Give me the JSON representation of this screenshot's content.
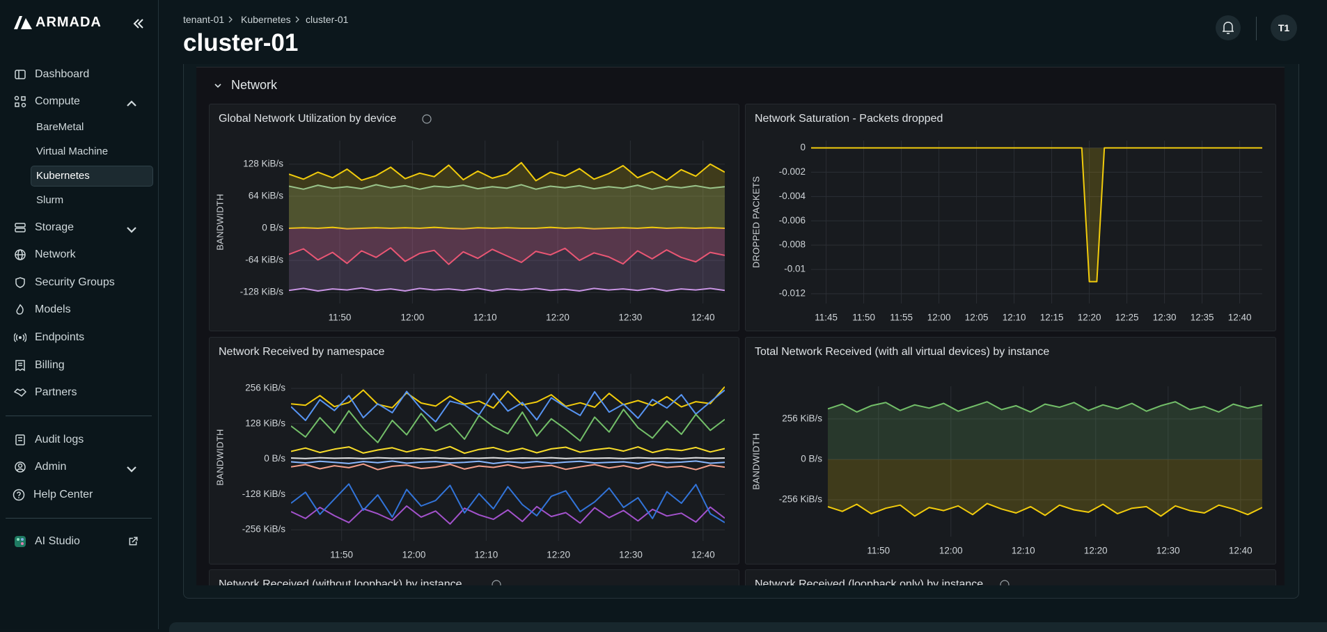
{
  "sidebar": {
    "brand": "ARMADA",
    "items": [
      "Dashboard",
      "Compute",
      "Storage",
      "Network",
      "Security Groups",
      "Models",
      "Endpoints",
      "Billing",
      "Partners"
    ],
    "compute_children": [
      "BareMetal",
      "Virtual Machine",
      "Kubernetes",
      "Slurm"
    ],
    "items2": [
      "Audit logs",
      "Admin",
      "Help Center"
    ],
    "footer": "AI Studio"
  },
  "header": {
    "breadcrumbs": [
      "tenant-01",
      "Kubernetes",
      "cluster-01"
    ],
    "title": "cluster-01",
    "avatar": "T1"
  },
  "section": {
    "title": "Network",
    "more_panels": [
      "Network Received (without loopback) by instance",
      "Network Received (loopback only) by instance"
    ]
  },
  "chart_data": [
    {
      "type": "line",
      "title": "Global Network Utilization by device",
      "ylabel": "BANDWIDTH",
      "grid": true,
      "x": [
        "11:43",
        "11:45",
        "11:47",
        "11:49",
        "11:51",
        "11:53",
        "11:55",
        "11:57",
        "11:59",
        "12:01",
        "12:03",
        "12:05",
        "12:07",
        "12:09",
        "12:11",
        "12:13",
        "12:15",
        "12:17",
        "12:19",
        "12:21",
        "12:23",
        "12:25",
        "12:27",
        "12:29",
        "12:31",
        "12:33",
        "12:35",
        "12:37",
        "12:39",
        "12:41",
        "12:43"
      ],
      "xlim": [
        "11:43",
        "12:43"
      ],
      "xticks": [
        "11:50",
        "12:00",
        "12:10",
        "12:20",
        "12:30",
        "12:40"
      ],
      "ylim": [
        -150,
        175
      ],
      "yticks": [
        {
          "value": 128,
          "label": "128 KiB/s"
        },
        {
          "value": 64,
          "label": "64 KiB/s"
        },
        {
          "value": 0,
          "label": "0 B/s"
        },
        {
          "value": -64,
          "label": "-64 KiB/s"
        },
        {
          "value": -128,
          "label": "-128 KiB/s"
        }
      ],
      "series": [
        {
          "color": "#f2cc0c",
          "fill": true,
          "values": [
            108,
            98,
            112,
            101,
            118,
            96,
            105,
            122,
            99,
            110,
            103,
            126,
            97,
            114,
            100,
            108,
            131,
            95,
            112,
            104,
            119,
            98,
            109,
            125,
            101,
            113,
            96,
            117,
            104,
            128,
            112
          ]
        },
        {
          "color": "#9ac48a",
          "fill": true,
          "values": [
            84,
            78,
            86,
            80,
            83,
            79,
            87,
            81,
            85,
            78,
            84,
            82,
            86,
            79,
            83,
            80,
            87,
            78,
            84,
            81,
            85,
            79,
            83,
            80,
            86,
            78,
            84,
            81,
            85,
            80,
            83
          ]
        },
        {
          "color": "#f2cc0c",
          "fill": false,
          "values": [
            0,
            1,
            0,
            2,
            -1,
            0,
            1,
            0,
            1,
            0,
            2,
            0,
            -1,
            1,
            0,
            1,
            0,
            0,
            2,
            0,
            1,
            -1,
            0,
            1,
            0,
            2,
            0,
            1,
            0,
            1,
            0
          ]
        },
        {
          "color": "#f2495c",
          "fill": true,
          "values": [
            -52,
            -41,
            -63,
            -48,
            -70,
            -45,
            -58,
            -39,
            -66,
            -50,
            -44,
            -72,
            -47,
            -60,
            -42,
            -55,
            -68,
            -46,
            -53,
            -40,
            -64,
            -49,
            -57,
            -71,
            -45,
            -61,
            -43,
            -58,
            -67,
            -48,
            -54
          ]
        },
        {
          "color": "#ca95e5",
          "fill": true,
          "values": [
            -124,
            -120,
            -125,
            -121,
            -123,
            -119,
            -124,
            -121,
            -125,
            -120,
            -123,
            -121,
            -124,
            -120,
            -125,
            -121,
            -123,
            -120,
            -124,
            -122,
            -125,
            -120,
            -123,
            -121,
            -124,
            -120,
            -125,
            -121,
            -123,
            -120,
            -124
          ]
        }
      ]
    },
    {
      "type": "line",
      "title": "Network Saturation - Packets dropped",
      "ylabel": "DROPPED PACKETS",
      "grid": true,
      "x": [
        "11:43",
        "12:19",
        "12:20",
        "12:21",
        "12:22",
        "12:43"
      ],
      "xlim": [
        "11:43",
        "12:43"
      ],
      "xticks": [
        "11:45",
        "11:50",
        "11:55",
        "12:00",
        "12:05",
        "12:10",
        "12:15",
        "12:20",
        "12:25",
        "12:30",
        "12:35",
        "12:40"
      ],
      "ylim": [
        -0.0128,
        0.0006
      ],
      "yticks": [
        0,
        -0.002,
        -0.004,
        -0.006,
        -0.008,
        -0.01,
        -0.012
      ],
      "series": [
        {
          "color": "#f2cc0c",
          "fill": true,
          "values": [
            0,
            0,
            -0.011,
            -0.011,
            0,
            0
          ]
        }
      ]
    },
    {
      "type": "line",
      "title": "Network Received by namespace",
      "ylabel": "BANDWIDTH",
      "grid": true,
      "x": [
        "11:43",
        "11:45",
        "11:47",
        "11:49",
        "11:51",
        "11:53",
        "11:55",
        "11:57",
        "11:59",
        "12:01",
        "12:03",
        "12:05",
        "12:07",
        "12:09",
        "12:11",
        "12:13",
        "12:15",
        "12:17",
        "12:19",
        "12:21",
        "12:23",
        "12:25",
        "12:27",
        "12:29",
        "12:31",
        "12:33",
        "12:35",
        "12:37",
        "12:39",
        "12:41",
        "12:43"
      ],
      "xlim": [
        "11:43",
        "12:43"
      ],
      "xticks": [
        "11:50",
        "12:00",
        "12:10",
        "12:20",
        "12:30",
        "12:40"
      ],
      "ylim": [
        -296,
        309
      ],
      "yticks": [
        {
          "value": 256,
          "label": "256 KiB/s"
        },
        {
          "value": 128,
          "label": "128 KiB/s"
        },
        {
          "value": 0,
          "label": "0 B/s"
        },
        {
          "value": -128,
          "label": "-128 KiB/s"
        },
        {
          "value": -256,
          "label": "-256 KiB/s"
        }
      ],
      "series": [
        {
          "color": "#f2cc0c",
          "fill": false,
          "values": [
            200,
            195,
            230,
            190,
            205,
            250,
            198,
            186,
            240,
            203,
            192,
            228,
            199,
            210,
            185,
            246,
            196,
            207,
            233,
            191,
            204,
            188,
            238,
            197,
            212,
            194,
            226,
            189,
            208,
            201,
            262
          ]
        },
        {
          "color": "#5794f2",
          "fill": false,
          "values": [
            190,
            140,
            215,
            176,
            230,
            150,
            200,
            168,
            245,
            182,
            135,
            210,
            196,
            160,
            238,
            174,
            205,
            142,
            222,
            188,
            158,
            244,
            170,
            199,
            148,
            216,
            185,
            233,
            163,
            207,
            250
          ]
        },
        {
          "color": "#73bf69",
          "fill": false,
          "values": [
            120,
            80,
            150,
            95,
            175,
            110,
            60,
            140,
            88,
            165,
            102,
            130,
            72,
            158,
            118,
            92,
            170,
            84,
            146,
            108,
            66,
            152,
            98,
            180,
            114,
            76,
            138,
            90,
            162,
            104,
            144
          ]
        },
        {
          "color": "#fade2a",
          "fill": false,
          "values": [
            28,
            40,
            24,
            36,
            44,
            22,
            33,
            41,
            26,
            38,
            30,
            45,
            21,
            35,
            42,
            27,
            39,
            23,
            37,
            43,
            25,
            34,
            40,
            29,
            44,
            24,
            36,
            31,
            42,
            26,
            38
          ]
        },
        {
          "color": "#e0e0e0",
          "fill": false,
          "values": [
            4,
            2,
            5,
            3,
            4,
            2,
            5,
            3,
            4,
            3,
            5,
            2,
            4,
            3,
            5,
            2,
            4,
            3,
            5,
            2,
            4,
            3,
            4,
            2,
            5,
            3,
            4,
            2,
            5,
            3,
            4
          ]
        },
        {
          "color": "#8ab8ff",
          "fill": false,
          "values": [
            -10,
            -14,
            -8,
            -12,
            -16,
            -9,
            -13,
            -7,
            -15,
            -11,
            -9,
            -14,
            -12,
            -8,
            -16,
            -10,
            -13,
            -9,
            -15,
            -11,
            -8,
            -14,
            -12,
            -10,
            -16,
            -9,
            -13,
            -11,
            -7,
            -15,
            -12
          ]
        },
        {
          "color": "#f4a08c",
          "fill": false,
          "values": [
            -28,
            -20,
            -35,
            -24,
            -31,
            -18,
            -38,
            -26,
            -22,
            -34,
            -29,
            -19,
            -36,
            -25,
            -30,
            -21,
            -33,
            -27,
            -23,
            -37,
            -28,
            -20,
            -32,
            -24,
            -35,
            -19,
            -30,
            -26,
            -38,
            -22,
            -29
          ]
        },
        {
          "color": "#a352cc",
          "fill": false,
          "values": [
            -190,
            -215,
            -175,
            -205,
            -230,
            -180,
            -198,
            -222,
            -170,
            -210,
            -188,
            -235,
            -178,
            -202,
            -218,
            -184,
            -226,
            -172,
            -208,
            -194,
            -232,
            -176,
            -212,
            -186,
            -224,
            -182,
            -206,
            -196,
            -228,
            -174,
            -214
          ]
        },
        {
          "color": "#3274d9",
          "fill": false,
          "values": [
            -160,
            -120,
            -200,
            -145,
            -90,
            -185,
            -130,
            -210,
            -110,
            -170,
            -150,
            -95,
            -195,
            -125,
            -180,
            -100,
            -165,
            -205,
            -135,
            -115,
            -190,
            -155,
            -105,
            -175,
            -140,
            -215,
            -118,
            -160,
            -92,
            -198,
            -230
          ]
        }
      ]
    },
    {
      "type": "line",
      "title": "Total Network Received (with all virtual devices) by instance",
      "ylabel": "BANDWIDTH",
      "grid": true,
      "x": [
        "11:43",
        "11:45",
        "11:47",
        "11:49",
        "11:51",
        "11:53",
        "11:55",
        "11:57",
        "11:59",
        "12:01",
        "12:03",
        "12:05",
        "12:07",
        "12:09",
        "12:11",
        "12:13",
        "12:15",
        "12:17",
        "12:19",
        "12:21",
        "12:23",
        "12:25",
        "12:27",
        "12:29",
        "12:31",
        "12:33",
        "12:35",
        "12:37",
        "12:39",
        "12:41",
        "12:43"
      ],
      "xlim": [
        "11:43",
        "12:43"
      ],
      "xticks": [
        "11:50",
        "12:00",
        "12:10",
        "12:20",
        "12:30",
        "12:40"
      ],
      "ylim": [
        -490,
        463
      ],
      "yticks": [
        {
          "value": 256,
          "label": "256 KiB/s"
        },
        {
          "value": 0,
          "label": "0 B/s"
        },
        {
          "value": -256,
          "label": "-256 KiB/s"
        }
      ],
      "series": [
        {
          "color": "#73bf69",
          "fill": true,
          "values": [
            320,
            350,
            300,
            340,
            360,
            310,
            345,
            325,
            355,
            305,
            335,
            365,
            315,
            340,
            300,
            350,
            330,
            360,
            310,
            345,
            320,
            355,
            305,
            340,
            365,
            315,
            335,
            300,
            350,
            325,
            345
          ]
        },
        {
          "color": "#f2cc0c",
          "fill": true,
          "values": [
            -300,
            -330,
            -285,
            -345,
            -310,
            -290,
            -360,
            -305,
            -325,
            -295,
            -350,
            -280,
            -315,
            -340,
            -300,
            -355,
            -290,
            -320,
            -335,
            -285,
            -345,
            -310,
            -300,
            -360,
            -295,
            -325,
            -340,
            -290,
            -315,
            -350,
            -305
          ]
        }
      ]
    }
  ]
}
